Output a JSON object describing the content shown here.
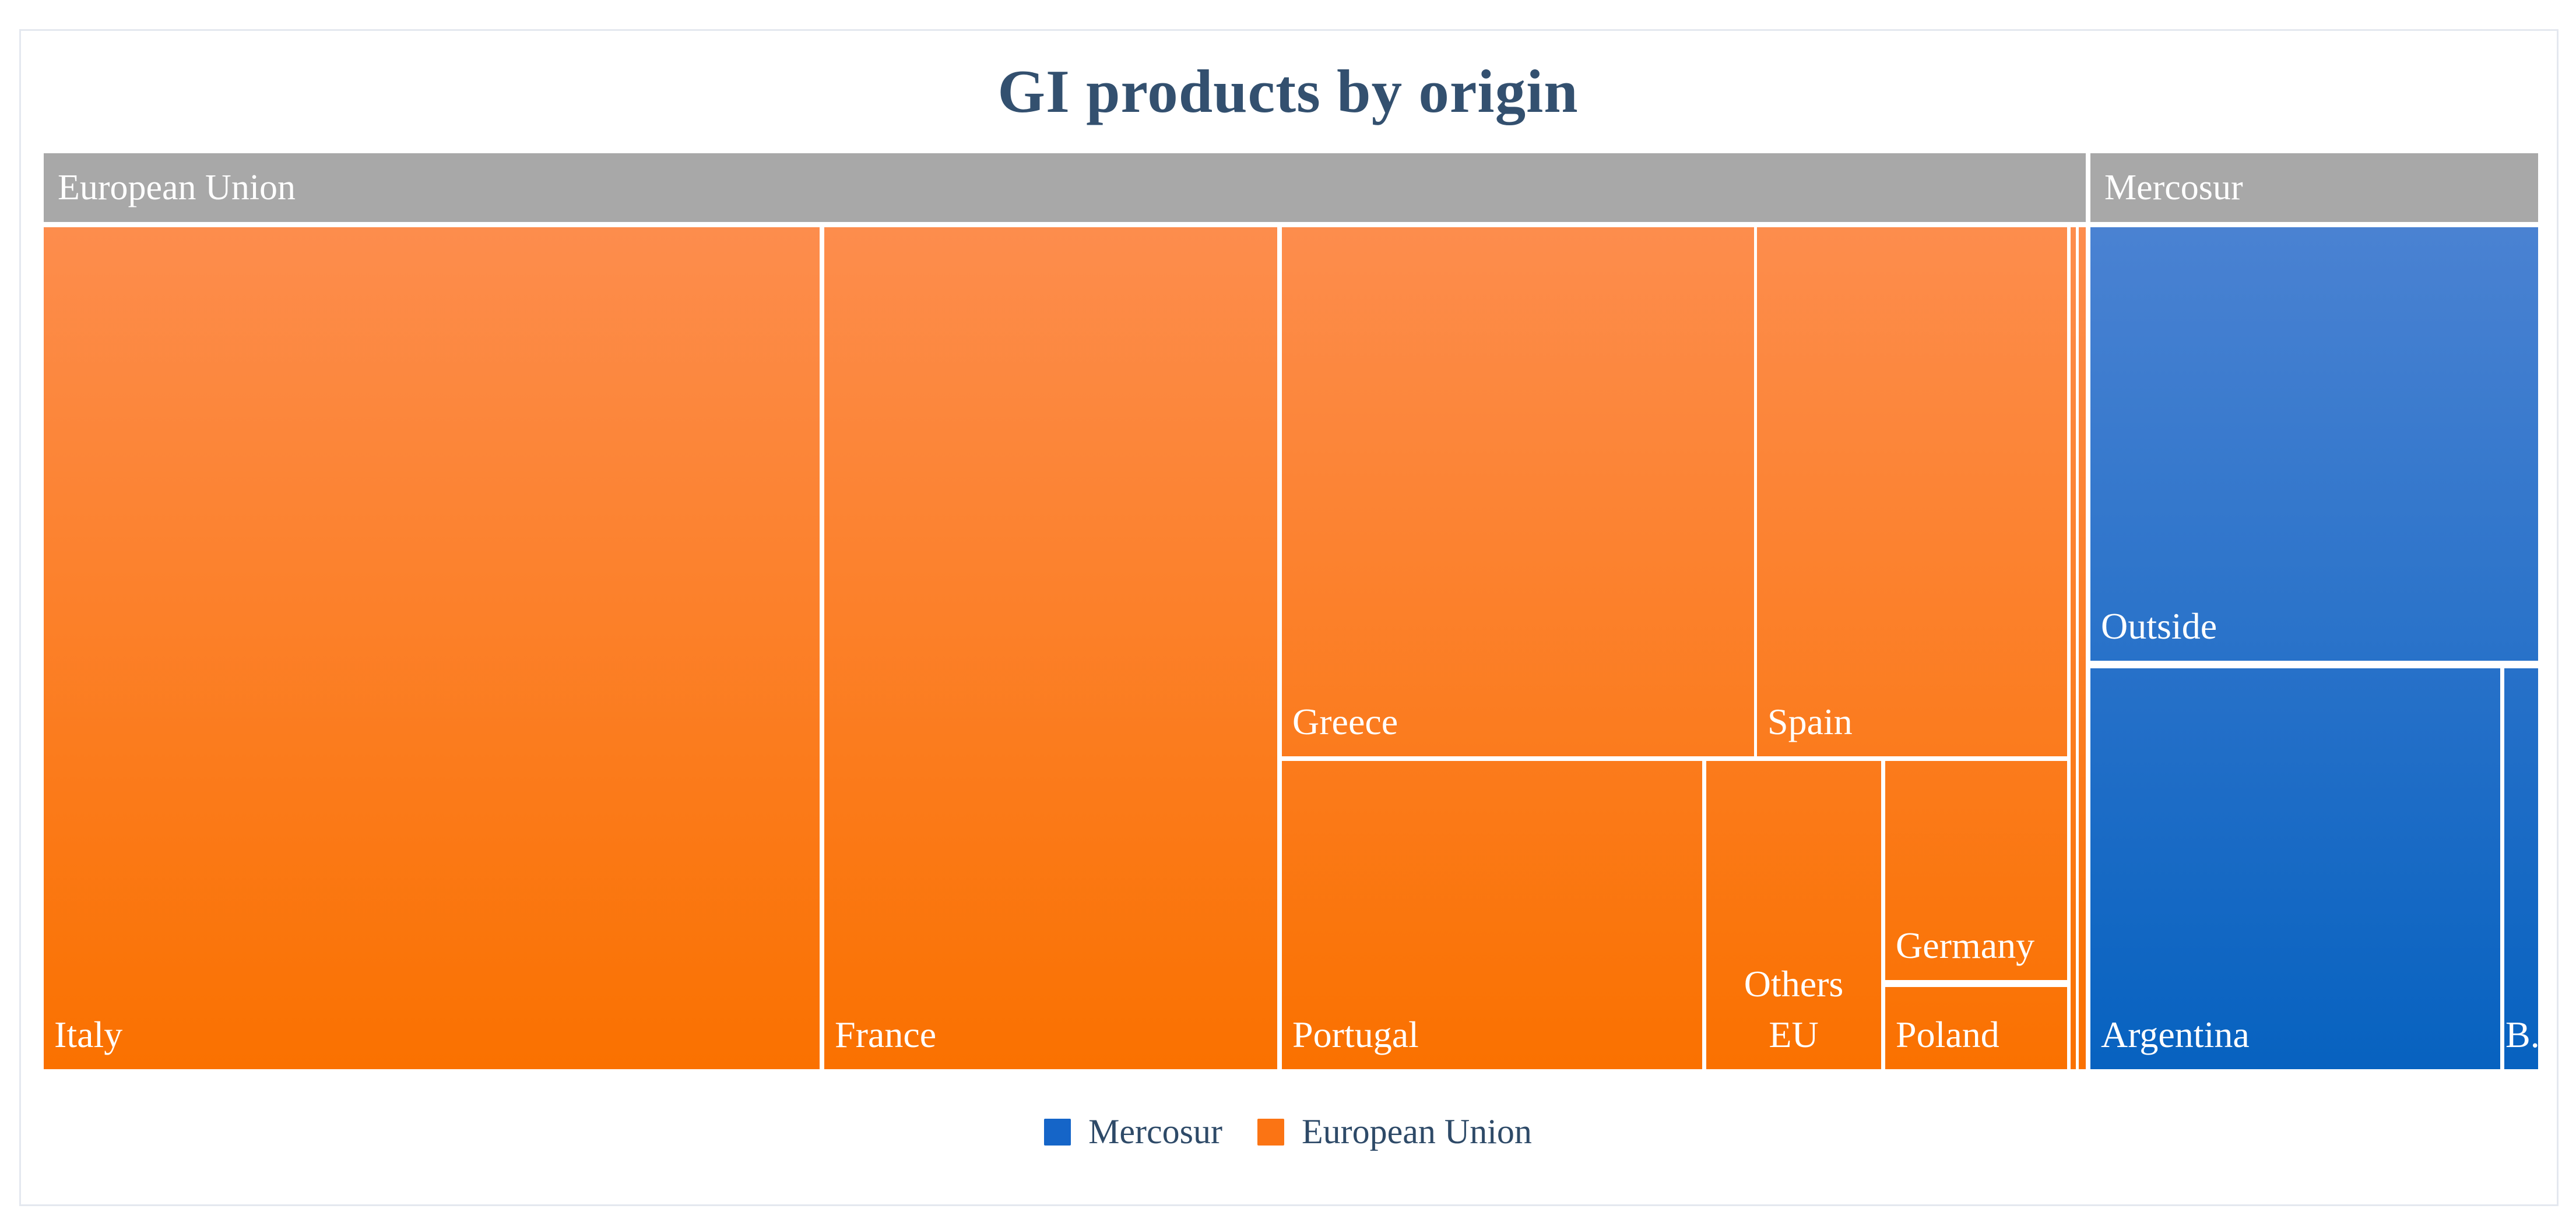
{
  "title": "GI products by origin",
  "colors": {
    "title_text": "#33506f",
    "category_band_bg": "#a8a8a8",
    "band_text": "#ffffff",
    "cell_text": "#ffffff",
    "figure_border": "#e4e8ef",
    "eu_gradient_top": "#fd8d4d",
    "eu_gradient_bottom": "#fa7100",
    "mercosur_gradient_top": "#4a82d2",
    "mercosur_gradient_bottom": "#0762c0"
  },
  "legend": {
    "items": [
      {
        "label": "Mercosur",
        "swatch": "#1565c8"
      },
      {
        "label": "European Union",
        "swatch": "#fb7414"
      }
    ]
  },
  "chart_data": {
    "type": "treemap",
    "title": "GI products by origin",
    "legend_position": "bottom-center",
    "legend_entries": [
      "Mercosur",
      "European Union"
    ],
    "groups": [
      {
        "name": "European Union",
        "gradient_top": "#fd8d4d",
        "gradient_bottom": "#fa7100",
        "children": [
          {
            "label": "Italy",
            "value_pct_est": 31.6
          },
          {
            "label": "France",
            "value_pct_est": 18.4
          },
          {
            "label": "Greece",
            "value_pct_est": 12.1
          },
          {
            "label": "Spain",
            "value_pct_est": 7.9
          },
          {
            "label": "Portugal",
            "value_pct_est": 6.3
          },
          {
            "label": "Others EU",
            "value_pct_est": 2.6
          },
          {
            "label": "Germany",
            "value_pct_est": 1.9
          },
          {
            "label": "Poland",
            "value_pct_est": 0.7
          },
          {
            "label": "",
            "value_pct_est": 0.3
          },
          {
            "label": "",
            "value_pct_est": 0.2
          }
        ]
      },
      {
        "name": "Mercosur",
        "gradient_top": "#4a82d2",
        "gradient_bottom": "#0762c0",
        "children": [
          {
            "label": "Outside",
            "value_pct_est": 9.4
          },
          {
            "label": "Argentina",
            "value_pct_est": 7.9
          },
          {
            "label": "B..",
            "value_pct_est": 0.7
          }
        ]
      }
    ]
  }
}
